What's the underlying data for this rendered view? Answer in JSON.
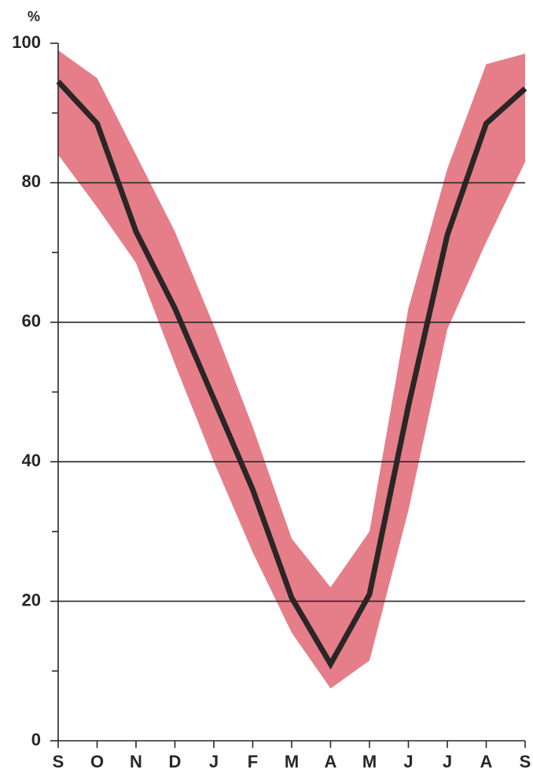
{
  "chart_data": {
    "type": "line",
    "y_label": "%",
    "categories": [
      "S",
      "O",
      "N",
      "D",
      "J",
      "F",
      "M",
      "A",
      "M",
      "J",
      "J",
      "A",
      "S"
    ],
    "values": [
      94.5,
      88.5,
      73,
      62,
      49,
      36,
      20.5,
      11,
      21,
      48,
      72.5,
      88.5,
      93.5
    ],
    "color": "#2b2626",
    "band": {
      "upper": [
        99,
        95,
        84,
        73,
        59.5,
        45,
        29,
        22,
        30,
        62,
        82,
        97,
        98.5
      ],
      "lower": [
        84,
        76.5,
        68.5,
        54,
        40,
        27,
        15.5,
        7.5,
        11.5,
        33,
        59,
        71.5,
        83
      ],
      "color": "#e57e89"
    },
    "ylim": [
      0,
      100
    ],
    "yticks": [
      0,
      20,
      40,
      60,
      80,
      100
    ],
    "yminorticks": [
      10,
      30,
      50,
      70,
      90
    ],
    "grid": true
  }
}
